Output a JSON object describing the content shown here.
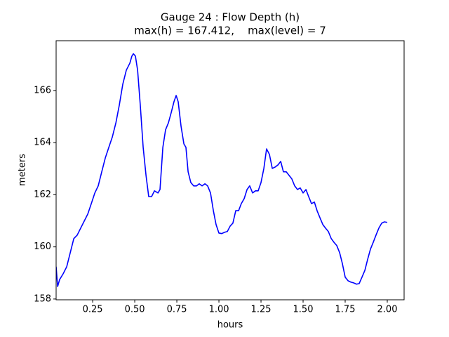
{
  "chart_data": {
    "type": "line",
    "title": "Gauge 24 : Flow Depth (h)",
    "subtitle": "max(h) = 167.412,    max(level) = 7",
    "xlabel": "hours",
    "ylabel": "meters",
    "xlim": [
      0.033,
      2.1
    ],
    "ylim": [
      157.97,
      167.91
    ],
    "xticks": [
      {
        "value": 0.25,
        "label": "0.25"
      },
      {
        "value": 0.5,
        "label": "0.50"
      },
      {
        "value": 0.75,
        "label": "0.75"
      },
      {
        "value": 1,
        "label": "1.00"
      },
      {
        "value": 1.25,
        "label": "1.25"
      },
      {
        "value": 1.5,
        "label": "1.50"
      },
      {
        "value": 1.75,
        "label": "1.75"
      },
      {
        "value": 2,
        "label": "2.00"
      }
    ],
    "yticks": [
      158,
      160,
      162,
      164,
      166
    ],
    "grid": false,
    "x": [
      0.033,
      0.042,
      0.054,
      0.075,
      0.096,
      0.117,
      0.138,
      0.158,
      0.179,
      0.2,
      0.221,
      0.242,
      0.263,
      0.283,
      0.304,
      0.325,
      0.346,
      0.367,
      0.388,
      0.408,
      0.429,
      0.45,
      0.471,
      0.483,
      0.492,
      0.504,
      0.517,
      0.533,
      0.55,
      0.567,
      0.583,
      0.6,
      0.617,
      0.638,
      0.65,
      0.667,
      0.683,
      0.7,
      0.717,
      0.733,
      0.746,
      0.758,
      0.775,
      0.792,
      0.804,
      0.817,
      0.833,
      0.85,
      0.867,
      0.883,
      0.9,
      0.917,
      0.933,
      0.95,
      0.967,
      0.983,
      1.0,
      1.017,
      1.033,
      1.05,
      1.067,
      1.083,
      1.1,
      1.117,
      1.133,
      1.15,
      1.167,
      1.183,
      1.2,
      1.217,
      1.233,
      1.25,
      1.267,
      1.283,
      1.3,
      1.317,
      1.333,
      1.35,
      1.367,
      1.383,
      1.4,
      1.417,
      1.433,
      1.45,
      1.467,
      1.483,
      1.5,
      1.517,
      1.533,
      1.55,
      1.567,
      1.583,
      1.6,
      1.617,
      1.633,
      1.65,
      1.667,
      1.683,
      1.7,
      1.717,
      1.733,
      1.75,
      1.767,
      1.783,
      1.8,
      1.817,
      1.833,
      1.85,
      1.867,
      1.883,
      1.9,
      1.917,
      1.933,
      1.95,
      1.967,
      1.983,
      2.0
    ],
    "series": [
      {
        "name": "h",
        "color": "#0000ff",
        "values": [
          159.24,
          158.48,
          158.75,
          158.97,
          159.24,
          159.78,
          160.32,
          160.45,
          160.72,
          160.99,
          161.26,
          161.66,
          162.07,
          162.34,
          162.88,
          163.41,
          163.82,
          164.22,
          164.76,
          165.43,
          166.24,
          166.78,
          167.05,
          167.32,
          167.41,
          167.32,
          166.78,
          165.43,
          163.82,
          162.74,
          161.93,
          161.93,
          162.15,
          162.07,
          162.2,
          163.82,
          164.49,
          164.76,
          165.16,
          165.57,
          165.81,
          165.57,
          164.63,
          163.95,
          163.82,
          162.88,
          162.47,
          162.34,
          162.34,
          162.42,
          162.34,
          162.42,
          162.34,
          162.07,
          161.39,
          160.86,
          160.53,
          160.51,
          160.56,
          160.59,
          160.8,
          160.91,
          161.39,
          161.39,
          161.66,
          161.85,
          162.2,
          162.34,
          162.07,
          162.15,
          162.15,
          162.47,
          163.01,
          163.76,
          163.55,
          163.01,
          163.06,
          163.14,
          163.28,
          162.88,
          162.88,
          162.74,
          162.61,
          162.34,
          162.2,
          162.26,
          162.07,
          162.2,
          161.93,
          161.66,
          161.72,
          161.39,
          161.12,
          160.86,
          160.72,
          160.59,
          160.32,
          160.18,
          160.05,
          159.78,
          159.37,
          158.84,
          158.7,
          158.65,
          158.62,
          158.57,
          158.59,
          158.84,
          159.1,
          159.51,
          159.91,
          160.18,
          160.45,
          160.72,
          160.91,
          160.96,
          160.94
        ]
      }
    ]
  }
}
